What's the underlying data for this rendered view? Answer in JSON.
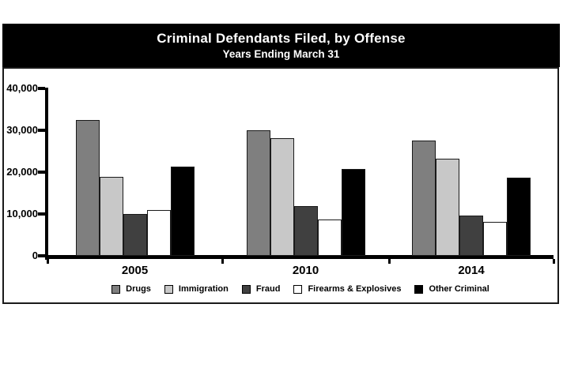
{
  "title_band": {
    "title": "Criminal Defendants Filed, by Offense",
    "subtitle": "Years Ending March 31"
  },
  "chart_data": {
    "type": "bar",
    "title": "Criminal Defendants Filed, by Offense",
    "subtitle": "Years Ending March 31",
    "categories": [
      "2005",
      "2010",
      "2014"
    ],
    "series": [
      {
        "name": "Drugs",
        "color": "#7f7f7f",
        "values": [
          32500,
          30000,
          27500
        ]
      },
      {
        "name": "Immigration",
        "color": "#c8c8c8",
        "values": [
          18800,
          28200,
          23200
        ]
      },
      {
        "name": "Fraud",
        "color": "#404040",
        "values": [
          10000,
          11900,
          9700
        ]
      },
      {
        "name": "Firearms & Explosives",
        "color": "#ffffff",
        "values": [
          10900,
          8700,
          8100
        ]
      },
      {
        "name": "Other Criminal",
        "color": "#000000",
        "values": [
          21400,
          20800,
          18700
        ]
      }
    ],
    "ylim": [
      0,
      40000
    ],
    "yticks": [
      {
        "value": 0,
        "label": "0"
      },
      {
        "value": 10000,
        "label": "10,000"
      },
      {
        "value": 20000,
        "label": "20,000"
      },
      {
        "value": 30000,
        "label": "30,000"
      },
      {
        "value": 40000,
        "label": "40,000"
      }
    ],
    "xlabel": "",
    "ylabel": "",
    "grid": false,
    "legend_position": "bottom-center",
    "bar_border_color": "#1a1a1a",
    "axis_color": "#000000",
    "title_band_background": "#000000",
    "title_band_text_color": "#ffffff"
  }
}
